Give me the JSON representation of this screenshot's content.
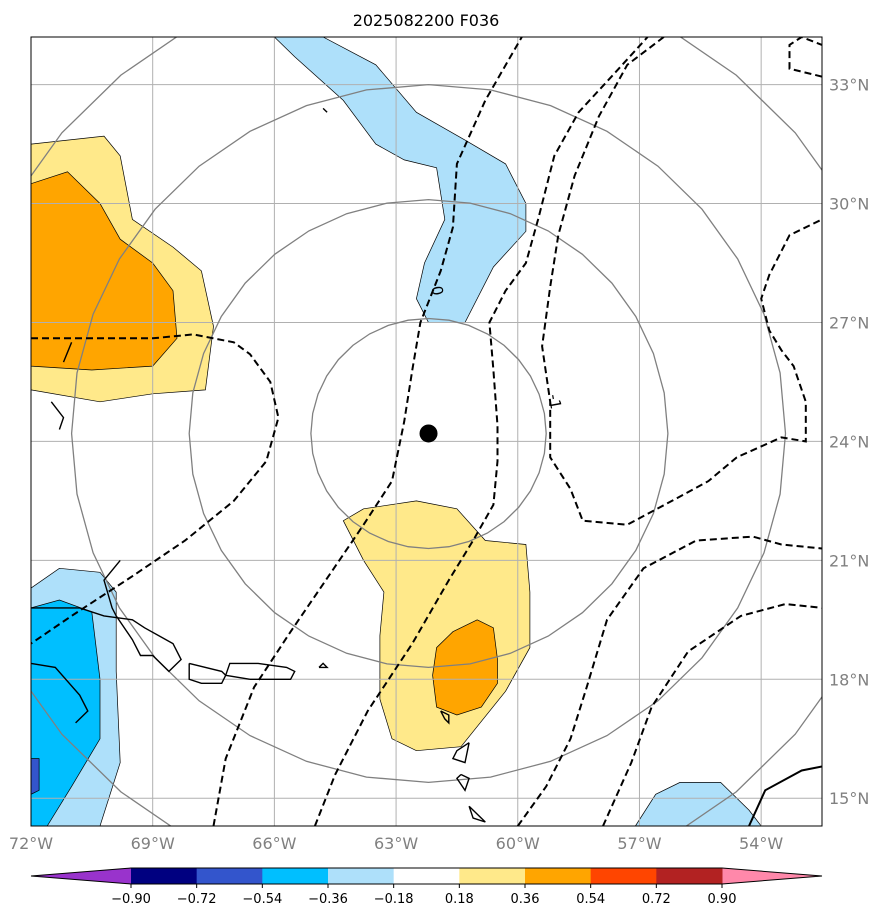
{
  "chart_data": {
    "type": "map",
    "title": "2025082200 F036",
    "projection": "lat-lon",
    "extent": {
      "lon": [
        -72,
        -52.5
      ],
      "lat": [
        14.3,
        34.2
      ]
    },
    "grid": true,
    "lon_ticks": [
      {
        "value": -72,
        "label": "72°W"
      },
      {
        "value": -69,
        "label": "69°W"
      },
      {
        "value": -66,
        "label": "66°W"
      },
      {
        "value": -63,
        "label": "63°W"
      },
      {
        "value": -60,
        "label": "60°W"
      },
      {
        "value": -57,
        "label": "57°W"
      },
      {
        "value": -54,
        "label": "54°W"
      }
    ],
    "lat_ticks": [
      {
        "value": 33,
        "label": "33°N"
      },
      {
        "value": 30,
        "label": "30°N"
      },
      {
        "value": 27,
        "label": "27°N"
      },
      {
        "value": 24,
        "label": "24°N"
      },
      {
        "value": 21,
        "label": "21°N"
      },
      {
        "value": 18,
        "label": "18°N"
      },
      {
        "value": 15,
        "label": "15°N"
      }
    ],
    "storm_center": {
      "lon": -62.2,
      "lat": 24.2
    },
    "range_rings_deg": [
      2.9,
      5.9,
      8.8,
      11.8
    ],
    "contour_labels": [
      {
        "text": "0",
        "lon": -62.0,
        "lat": 27.8
      },
      {
        "text": "-1",
        "lon": -59.1,
        "lat": 25.0
      }
    ],
    "colorbar": {
      "ticks": [
        "−0.90",
        "−0.72",
        "−0.54",
        "−0.36",
        "−0.18",
        "0.18",
        "0.36",
        "0.54",
        "0.72",
        "0.90"
      ],
      "colors": [
        "#9933cc",
        "#000080",
        "#3355cc",
        "#00bfff",
        "#aee0fa",
        "#ffffff",
        "#ffe98a",
        "#ffa500",
        "#ff4500",
        "#b22222",
        "#ff88aa"
      ],
      "extend": "both"
    },
    "fields": [
      {
        "level": "pos1",
        "color": "#ffe98a",
        "polygon": [
          [
            -72,
            31.5
          ],
          [
            -70.2,
            31.7
          ],
          [
            -69.8,
            31.2
          ],
          [
            -69.5,
            29.6
          ],
          [
            -68.5,
            28.9
          ],
          [
            -67.8,
            28.3
          ],
          [
            -67.5,
            26.9
          ],
          [
            -67.7,
            25.3
          ],
          [
            -69.0,
            25.2
          ],
          [
            -70.3,
            25.0
          ],
          [
            -72,
            25.3
          ]
        ]
      },
      {
        "level": "pos2",
        "color": "#ffa500",
        "polygon": [
          [
            -72,
            30.5
          ],
          [
            -71.1,
            30.8
          ],
          [
            -70.3,
            30.0
          ],
          [
            -69.8,
            29.1
          ],
          [
            -69.0,
            28.5
          ],
          [
            -68.5,
            27.8
          ],
          [
            -68.4,
            26.6
          ],
          [
            -69.0,
            25.9
          ],
          [
            -70.5,
            25.8
          ],
          [
            -72,
            25.9
          ]
        ]
      },
      {
        "level": "pos1",
        "color": "#ffe98a",
        "polygon": [
          [
            -63.8,
            22.3
          ],
          [
            -62.5,
            22.5
          ],
          [
            -61.5,
            22.3
          ],
          [
            -60.8,
            21.5
          ],
          [
            -59.8,
            21.4
          ],
          [
            -59.7,
            20.2
          ],
          [
            -59.7,
            18.8
          ],
          [
            -60.3,
            17.7
          ],
          [
            -61.4,
            16.3
          ],
          [
            -62.5,
            16.2
          ],
          [
            -63.1,
            16.5
          ],
          [
            -63.4,
            17.5
          ],
          [
            -63.4,
            19.1
          ],
          [
            -63.3,
            20.2
          ],
          [
            -63.8,
            21.0
          ],
          [
            -64.3,
            22.0
          ]
        ]
      },
      {
        "level": "pos2",
        "color": "#ffa500",
        "polygon": [
          [
            -61.0,
            19.5
          ],
          [
            -60.6,
            19.3
          ],
          [
            -60.5,
            18.5
          ],
          [
            -60.5,
            17.9
          ],
          [
            -60.9,
            17.3
          ],
          [
            -61.5,
            17.1
          ],
          [
            -62.0,
            17.3
          ],
          [
            -62.1,
            18.1
          ],
          [
            -62.0,
            18.8
          ],
          [
            -61.6,
            19.2
          ]
        ]
      },
      {
        "level": "neg1",
        "color": "#aee0fa",
        "polygon": [
          [
            -66.3,
            34.2
          ],
          [
            -64.8,
            34.2
          ],
          [
            -63.5,
            33.5
          ],
          [
            -62.5,
            32.3
          ],
          [
            -61.3,
            31.6
          ],
          [
            -60.3,
            31.0
          ],
          [
            -59.8,
            30.0
          ],
          [
            -59.8,
            29.3
          ],
          [
            -60.6,
            28.4
          ],
          [
            -61.3,
            27.0
          ],
          [
            -62.2,
            27.0
          ],
          [
            -62.5,
            27.6
          ],
          [
            -62.3,
            28.5
          ],
          [
            -61.8,
            29.6
          ],
          [
            -62.0,
            30.9
          ],
          [
            -62.8,
            31.1
          ],
          [
            -63.5,
            31.5
          ],
          [
            -64.3,
            32.6
          ],
          [
            -65.5,
            33.7
          ],
          [
            -66.0,
            34.2
          ]
        ]
      },
      {
        "level": "neg1",
        "color": "#aee0fa",
        "polygon": [
          [
            -72,
            20.3
          ],
          [
            -71.3,
            20.8
          ],
          [
            -70.3,
            20.7
          ],
          [
            -69.9,
            20.2
          ],
          [
            -69.9,
            18.2
          ],
          [
            -69.8,
            15.9
          ],
          [
            -70.3,
            14.3
          ],
          [
            -72,
            14.3
          ]
        ]
      },
      {
        "level": "neg2",
        "color": "#00bfff",
        "polygon": [
          [
            -72,
            19.8
          ],
          [
            -71.3,
            20.0
          ],
          [
            -70.5,
            19.7
          ],
          [
            -70.3,
            18.0
          ],
          [
            -70.3,
            16.5
          ],
          [
            -71.0,
            15.3
          ],
          [
            -71.6,
            14.3
          ],
          [
            -72,
            14.3
          ]
        ]
      },
      {
        "level": "neg3",
        "color": "#3355cc",
        "polygon": [
          [
            -72,
            16.0
          ],
          [
            -71.8,
            16.0
          ],
          [
            -71.8,
            15.2
          ],
          [
            -72,
            15.1
          ]
        ]
      },
      {
        "level": "neg1",
        "color": "#aee0fa",
        "polygon": [
          [
            -57.1,
            14.3
          ],
          [
            -56.6,
            15.1
          ],
          [
            -56.0,
            15.4
          ],
          [
            -55.0,
            15.4
          ],
          [
            -54.3,
            14.7
          ],
          [
            -54.0,
            14.3
          ]
        ]
      }
    ],
    "dashed_contours": [
      [
        [
          -72,
          26.6
        ],
        [
          -70.5,
          26.6
        ],
        [
          -69.0,
          26.6
        ],
        [
          -68.0,
          26.7
        ],
        [
          -67.0,
          26.5
        ],
        [
          -66.6,
          26.2
        ],
        [
          -66.1,
          25.5
        ],
        [
          -65.9,
          24.6
        ],
        [
          -66.2,
          23.5
        ],
        [
          -67.0,
          22.5
        ],
        [
          -68.2,
          21.5
        ],
        [
          -69.5,
          20.6
        ],
        [
          -71.0,
          19.6
        ],
        [
          -72,
          18.9
        ]
      ],
      [
        [
          -67.5,
          14.3
        ],
        [
          -67.2,
          16.0
        ],
        [
          -66.5,
          17.8
        ],
        [
          -65.6,
          19.2
        ],
        [
          -64.6,
          20.7
        ],
        [
          -63.8,
          21.9
        ],
        [
          -63.1,
          23.0
        ],
        [
          -62.8,
          24.5
        ],
        [
          -62.6,
          25.8
        ],
        [
          -62.4,
          27.0
        ],
        [
          -61.9,
          28.3
        ],
        [
          -61.6,
          29.4
        ],
        [
          -61.5,
          31.0
        ],
        [
          -60.8,
          32.6
        ],
        [
          -59.9,
          34.2
        ]
      ],
      [
        [
          -65.0,
          14.3
        ],
        [
          -64.5,
          15.6
        ],
        [
          -63.7,
          17.2
        ],
        [
          -62.6,
          18.9
        ],
        [
          -61.7,
          20.5
        ],
        [
          -61.1,
          21.5
        ],
        [
          -60.6,
          22.4
        ],
        [
          -60.5,
          23.5
        ],
        [
          -60.5,
          24.4
        ],
        [
          -60.6,
          25.8
        ],
        [
          -60.7,
          27.0
        ],
        [
          -60.3,
          27.8
        ],
        [
          -59.8,
          28.5
        ],
        [
          -59.5,
          29.6
        ],
        [
          -59.1,
          31.2
        ],
        [
          -58.5,
          32.3
        ],
        [
          -57.6,
          33.3
        ],
        [
          -56.8,
          34.2
        ]
      ],
      [
        [
          -60.0,
          14.3
        ],
        [
          -59.3,
          15.3
        ],
        [
          -58.7,
          16.5
        ],
        [
          -58.3,
          17.8
        ],
        [
          -57.8,
          19.5
        ],
        [
          -56.9,
          20.8
        ],
        [
          -55.6,
          21.5
        ],
        [
          -54.2,
          21.6
        ],
        [
          -53.5,
          21.4
        ],
        [
          -52.5,
          21.3
        ]
      ],
      [
        [
          -57.9,
          14.3
        ],
        [
          -57.2,
          15.9
        ],
        [
          -56.7,
          17.3
        ],
        [
          -55.8,
          18.7
        ],
        [
          -54.5,
          19.6
        ],
        [
          -53.4,
          19.9
        ],
        [
          -52.5,
          19.8
        ]
      ],
      [
        [
          -56.4,
          34.2
        ],
        [
          -57.3,
          33.5
        ],
        [
          -58.0,
          32.2
        ],
        [
          -58.6,
          30.7
        ],
        [
          -59.0,
          29.2
        ],
        [
          -59.2,
          27.9
        ],
        [
          -59.4,
          26.4
        ],
        [
          -59.2,
          25.0
        ],
        [
          -59.2,
          23.6
        ],
        [
          -58.7,
          22.8
        ],
        [
          -58.4,
          22.0
        ],
        [
          -57.3,
          21.9
        ],
        [
          -56.2,
          22.5
        ],
        [
          -55.3,
          23.0
        ],
        [
          -54.6,
          23.6
        ],
        [
          -53.5,
          24.1
        ],
        [
          -52.9,
          24.0
        ],
        [
          -52.9,
          24.5
        ],
        [
          -52.9,
          25.0
        ],
        [
          -53.2,
          25.9
        ],
        [
          -53.5,
          26.3
        ],
        [
          -53.8,
          26.8
        ],
        [
          -54.0,
          27.6
        ],
        [
          -53.8,
          28.2
        ],
        [
          -53.3,
          29.2
        ],
        [
          -52.5,
          29.6
        ]
      ],
      [
        [
          -52.5,
          33.2
        ],
        [
          -53.3,
          33.4
        ],
        [
          -53.3,
          34.0
        ],
        [
          -53.0,
          34.2
        ],
        [
          -52.5,
          34.0
        ]
      ]
    ],
    "solid_contours": [
      [
        [
          -54.3,
          14.3
        ],
        [
          -53.9,
          15.2
        ],
        [
          -53.0,
          15.7
        ],
        [
          -52.5,
          15.8
        ]
      ]
    ],
    "coastlines": [
      [
        [
          -69.8,
          21.0
        ],
        [
          -70.2,
          20.5
        ],
        [
          -70.0,
          19.8
        ],
        [
          -69.9,
          19.6
        ],
        [
          -69.5,
          19.0
        ],
        [
          -69.3,
          18.6
        ],
        [
          -69.0,
          18.6
        ],
        [
          -68.6,
          18.2
        ],
        [
          -68.3,
          18.5
        ],
        [
          -68.5,
          18.9
        ],
        [
          -69.2,
          19.3
        ],
        [
          -69.5,
          19.5
        ],
        [
          -70.2,
          19.6
        ],
        [
          -70.8,
          19.8
        ],
        [
          -71.6,
          19.8
        ],
        [
          -72,
          19.8
        ]
      ],
      [
        [
          -68.1,
          18.4
        ],
        [
          -67.3,
          18.2
        ],
        [
          -67.2,
          18.1
        ],
        [
          -67.3,
          17.9
        ],
        [
          -67.8,
          17.9
        ],
        [
          -68.1,
          18.0
        ],
        [
          -68.1,
          18.4
        ]
      ],
      [
        [
          -66.6,
          18.0
        ],
        [
          -65.6,
          18.0
        ],
        [
          -65.5,
          18.2
        ],
        [
          -65.7,
          18.3
        ],
        [
          -66.4,
          18.4
        ],
        [
          -67.1,
          18.4
        ],
        [
          -67.2,
          18.1
        ],
        [
          -66.6,
          18.0
        ]
      ],
      [
        [
          -64.9,
          18.3
        ],
        [
          -64.7,
          18.3
        ],
        [
          -64.8,
          18.4
        ],
        [
          -64.9,
          18.3
        ]
      ],
      [
        [
          -72,
          18.4
        ],
        [
          -71.4,
          18.3
        ],
        [
          -70.8,
          17.6
        ],
        [
          -70.6,
          17.2
        ],
        [
          -70.9,
          16.9
        ]
      ],
      [
        [
          -61.9,
          17.2
        ],
        [
          -61.7,
          17.1
        ],
        [
          -61.7,
          16.9
        ],
        [
          -61.8,
          17.0
        ],
        [
          -61.9,
          17.2
        ]
      ],
      [
        [
          -61.2,
          16.4
        ],
        [
          -61.5,
          16.2
        ],
        [
          -61.6,
          16.0
        ],
        [
          -61.3,
          15.9
        ],
        [
          -61.2,
          16.4
        ]
      ],
      [
        [
          -61.4,
          15.6
        ],
        [
          -61.2,
          15.5
        ],
        [
          -61.3,
          15.2
        ],
        [
          -61.5,
          15.5
        ],
        [
          -61.4,
          15.6
        ]
      ],
      [
        [
          -61.2,
          14.8
        ],
        [
          -61.0,
          14.6
        ],
        [
          -60.8,
          14.4
        ],
        [
          -61.1,
          14.5
        ],
        [
          -61.2,
          14.8
        ]
      ],
      [
        [
          -71.5,
          25.0
        ],
        [
          -71.2,
          24.6
        ],
        [
          -71.3,
          24.3
        ]
      ],
      [
        [
          -71.0,
          26.5
        ],
        [
          -71.2,
          26.0
        ]
      ],
      [
        [
          -64.8,
          32.4
        ],
        [
          -64.7,
          32.3
        ]
      ]
    ]
  }
}
